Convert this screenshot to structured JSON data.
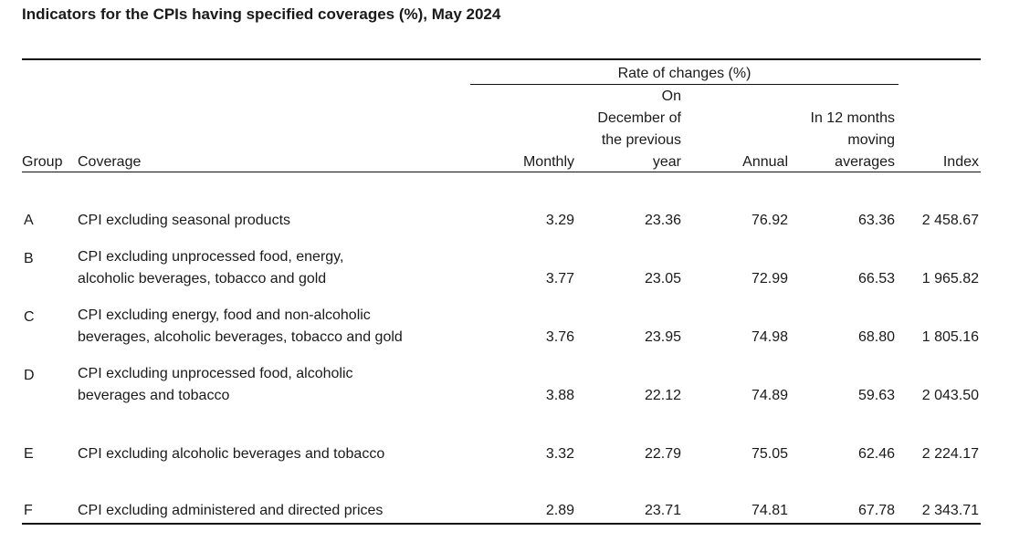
{
  "title": "Indicators for the CPIs having specified coverages (%), May 2024",
  "header": {
    "group": "Group",
    "coverage": "Coverage",
    "rate_of_changes": "Rate of changes (%)",
    "monthly": "Monthly",
    "on_december_line1": "On",
    "on_december_line2": "December of",
    "on_december_line3": "the previous",
    "on_december_line4": "year",
    "annual": "Annual",
    "moving_line1": "In 12 months",
    "moving_line2": "moving",
    "moving_line3": "averages",
    "index": "Index"
  },
  "rows": [
    {
      "group": "A",
      "coverage_line1": "CPI excluding seasonal products",
      "coverage_line2": "",
      "monthly": "3.29",
      "december": "23.36",
      "annual": "76.92",
      "moving": "63.36",
      "index": "2 458.67"
    },
    {
      "group": "B",
      "coverage_line1": "CPI excluding unprocessed food, energy,",
      "coverage_line2": "alcoholic beverages, tobacco and gold",
      "monthly": "3.77",
      "december": "23.05",
      "annual": "72.99",
      "moving": "66.53",
      "index": "1 965.82"
    },
    {
      "group": "C",
      "coverage_line1": "CPI excluding energy, food and non-alcoholic",
      "coverage_line2": "beverages, alcoholic beverages, tobacco and gold",
      "monthly": "3.76",
      "december": "23.95",
      "annual": "74.98",
      "moving": "68.80",
      "index": "1 805.16"
    },
    {
      "group": "D",
      "coverage_line1": "CPI excluding unprocessed food, alcoholic",
      "coverage_line2": "beverages and tobacco",
      "monthly": "3.88",
      "december": "22.12",
      "annual": "74.89",
      "moving": "59.63",
      "index": "2 043.50"
    },
    {
      "group": "E",
      "coverage_line1": "CPI excluding alcoholic beverages and tobacco",
      "coverage_line2": "",
      "monthly": "3.32",
      "december": "22.79",
      "annual": "75.05",
      "moving": "62.46",
      "index": "2 224.17"
    },
    {
      "group": "F",
      "coverage_line1": "CPI excluding administered and directed prices",
      "coverage_line2": "",
      "monthly": "2.89",
      "december": "23.71",
      "annual": "74.81",
      "moving": "67.78",
      "index": "2 343.71"
    }
  ]
}
